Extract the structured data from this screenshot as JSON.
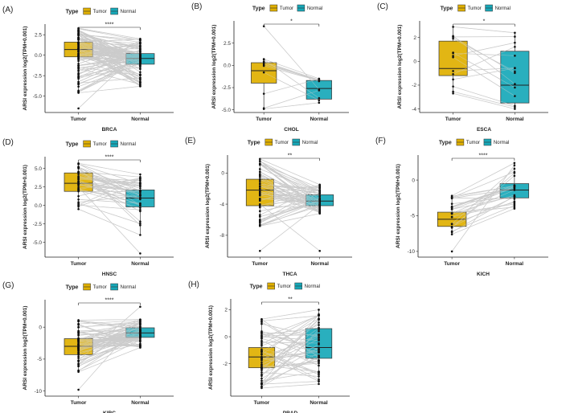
{
  "colors": {
    "tumor": "#E0B000",
    "normal": "#17A8B8",
    "pair_line": "#BDBDBD",
    "axis": "#222222",
    "point": "#111111"
  },
  "legend": {
    "title": "Type",
    "labels": [
      "Tumor",
      "Normal"
    ]
  },
  "chart_data": [
    {
      "type": "box",
      "panel_label": "(A)",
      "title": "",
      "xlabel": "BRCA",
      "ylabel": "ARSI expression log2(TPM+0.001)",
      "categories": [
        "Tumor",
        "Normal"
      ],
      "ylim": [
        -7,
        3.8
      ],
      "yticks": [
        2.5,
        0,
        -2.5,
        -5
      ],
      "ytick_labels": [
        "2.5",
        "0.0",
        "-2.5",
        "-5.0"
      ],
      "significance": "****",
      "n_pairs": 110,
      "boxes": [
        {
          "group": "Tumor",
          "min": -4.6,
          "q1": -0.2,
          "median": 0.7,
          "q3": 1.6,
          "max": 3.3,
          "outliers": [
            -6.5
          ]
        },
        {
          "group": "Normal",
          "min": -3.8,
          "q1": -1.1,
          "median": -0.4,
          "q3": 0.2,
          "max": 2.0,
          "outliers": []
        }
      ]
    },
    {
      "type": "box",
      "panel_label": "(B)",
      "title": "",
      "xlabel": "CHOL",
      "ylabel": "ARSI expression log2(TPM+0.001)",
      "categories": [
        "Tumor",
        "Normal"
      ],
      "ylim": [
        -5.3,
        5
      ],
      "yticks": [
        2.5,
        0,
        -2.5,
        -5
      ],
      "ytick_labels": [
        "2.5",
        "0.0",
        "-2.5",
        "-5.0"
      ],
      "significance": "*",
      "n_pairs": 9,
      "boxes": [
        {
          "group": "Tumor",
          "min": -4.9,
          "q1": -2.0,
          "median": -0.6,
          "q3": 0.3,
          "max": 0.7,
          "outliers": [
            4.4
          ]
        },
        {
          "group": "Normal",
          "min": -4.2,
          "q1": -3.8,
          "median": -2.6,
          "q3": -1.7,
          "max": -1.5,
          "outliers": []
        }
      ]
    },
    {
      "type": "box",
      "panel_label": "(C)",
      "title": "",
      "xlabel": "ESCA",
      "ylabel": "ARSI expression log2(TPM+0.001)",
      "categories": [
        "Tumor",
        "Normal"
      ],
      "ylim": [
        -4.3,
        3.4
      ],
      "yticks": [
        2,
        0,
        -2,
        -4
      ],
      "ytick_labels": [
        "2",
        "0",
        "-2",
        "-4"
      ],
      "significance": "*",
      "n_pairs": 13,
      "boxes": [
        {
          "group": "Tumor",
          "min": -2.7,
          "q1": -1.2,
          "median": -0.6,
          "q3": 1.7,
          "max": 2.9,
          "outliers": []
        },
        {
          "group": "Normal",
          "min": -4.0,
          "q1": -3.5,
          "median": -2.0,
          "q3": 0.85,
          "max": 2.4,
          "outliers": []
        }
      ]
    },
    {
      "type": "box",
      "panel_label": "(D)",
      "title": "",
      "xlabel": "HNSC",
      "ylabel": "ARSI expression log2(TPM+0.001)",
      "categories": [
        "Tumor",
        "Normal"
      ],
      "ylim": [
        -7,
        6.6
      ],
      "yticks": [
        5,
        2.5,
        0,
        -2.5,
        -5
      ],
      "ytick_labels": [
        "5.0",
        "2.5",
        "0.0",
        "-2.5",
        "-5.0"
      ],
      "significance": "****",
      "n_pairs": 43,
      "boxes": [
        {
          "group": "Tumor",
          "min": -0.5,
          "q1": 1.9,
          "median": 3.0,
          "q3": 4.4,
          "max": 5.7,
          "outliers": []
        },
        {
          "group": "Normal",
          "min": -4.0,
          "q1": -0.2,
          "median": 1.0,
          "q3": 2.1,
          "max": 4.2,
          "outliers": [
            -6.5
          ]
        }
      ]
    },
    {
      "type": "box",
      "panel_label": "(E)",
      "title": "",
      "xlabel": "THCA",
      "ylabel": "ARSI expression log2(TPM+0.001)",
      "categories": [
        "Tumor",
        "Normal"
      ],
      "ylim": [
        -10.8,
        2.3
      ],
      "yticks": [
        0,
        -4,
        -8
      ],
      "ytick_labels": [
        "0",
        "-4",
        "-8"
      ],
      "significance": "**",
      "n_pairs": 58,
      "boxes": [
        {
          "group": "Tumor",
          "min": -6.8,
          "q1": -4.2,
          "median": -2.2,
          "q3": -0.8,
          "max": 1.8,
          "outliers": [
            -10.0
          ]
        },
        {
          "group": "Normal",
          "min": -5.2,
          "q1": -4.2,
          "median": -3.6,
          "q3": -2.8,
          "max": -1.5,
          "outliers": [
            -10.0
          ]
        }
      ]
    },
    {
      "type": "box",
      "panel_label": "(F)",
      "title": "",
      "xlabel": "KICH",
      "ylabel": "ARSI expression log2(TPM+0.001)",
      "categories": [
        "Tumor",
        "Normal"
      ],
      "ylim": [
        -10.8,
        3.5
      ],
      "yticks": [
        0,
        -5,
        -10
      ],
      "ytick_labels": [
        "0",
        "-5",
        "-10"
      ],
      "significance": "****",
      "n_pairs": 25,
      "boxes": [
        {
          "group": "Tumor",
          "min": -7.6,
          "q1": -6.5,
          "median": -5.5,
          "q3": -4.5,
          "max": -2.2,
          "outliers": [
            -10.0
          ]
        },
        {
          "group": "Normal",
          "min": -4.0,
          "q1": -2.5,
          "median": -1.4,
          "q3": -0.5,
          "max": 2.4,
          "outliers": []
        }
      ]
    },
    {
      "type": "box",
      "panel_label": "(G)",
      "title": "",
      "xlabel": "KIRC",
      "ylabel": "ARSI expression log2(TPM+0.001)",
      "categories": [
        "Tumor",
        "Normal"
      ],
      "ylim": [
        -10.8,
        4.3
      ],
      "yticks": [
        0,
        -5,
        -10
      ],
      "ytick_labels": [
        "0",
        "-5",
        "-10"
      ],
      "significance": "****",
      "n_pairs": 72,
      "boxes": [
        {
          "group": "Tumor",
          "min": -7.0,
          "q1": -4.3,
          "median": -3.0,
          "q3": -1.8,
          "max": 1.1,
          "outliers": [
            -9.8
          ]
        },
        {
          "group": "Normal",
          "min": -3.2,
          "q1": -1.6,
          "median": -0.9,
          "q3": -0.1,
          "max": 1.2,
          "outliers": [
            3.2
          ]
        }
      ]
    },
    {
      "type": "box",
      "panel_label": "(H)",
      "title": "",
      "xlabel": "PRAD",
      "ylabel": "ARSI expression log2(TPM+0.001)",
      "categories": [
        "Tumor",
        "Normal"
      ],
      "ylim": [
        -4.4,
        2.8
      ],
      "yticks": [
        2,
        0,
        -2
      ],
      "ytick_labels": [
        "2",
        "0",
        "-2"
      ],
      "significance": "**",
      "n_pairs": 52,
      "boxes": [
        {
          "group": "Tumor",
          "min": -3.8,
          "q1": -2.3,
          "median": -1.5,
          "q3": -0.8,
          "max": 1.3,
          "outliers": []
        },
        {
          "group": "Normal",
          "min": -3.5,
          "q1": -1.6,
          "median": -0.8,
          "q3": 0.6,
          "max": 2.0,
          "outliers": []
        }
      ]
    }
  ]
}
